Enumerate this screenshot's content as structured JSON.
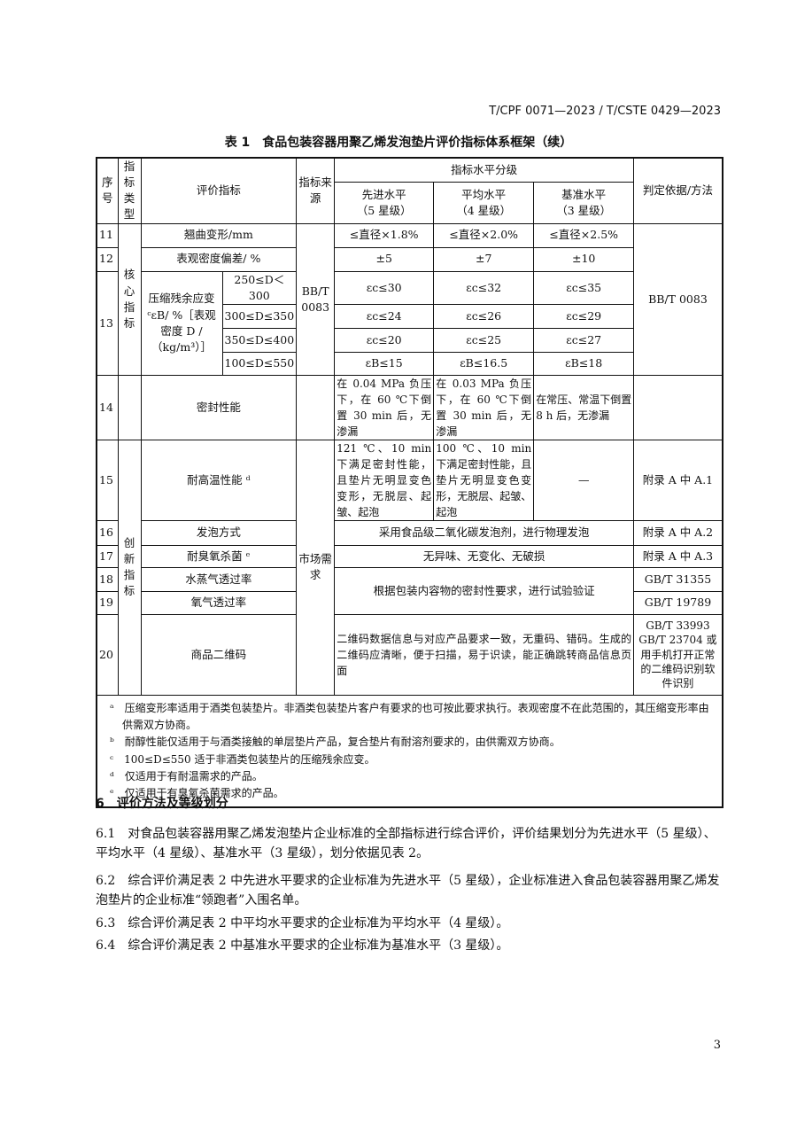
{
  "header": "T/CPF 0071—2023 / T/CSTE 0429—2023",
  "caption": "表 1　食品包装容器用聚乙烯发泡垫片评价指标体系框架（续）",
  "thead": {
    "no": "序号",
    "type": "指标类型",
    "indicator": "评价指标",
    "source": "指标来源",
    "levels": "指标水平分级",
    "l5": "先进水平",
    "l5s": "（5 星级）",
    "l4": "平均水平",
    "l4s": "（4 星级）",
    "l3": "基准水平",
    "l3s": "（3 星级）",
    "method": "判定依据/方法"
  },
  "types": {
    "core": "核心指标",
    "innov": "创新指标"
  },
  "sources": {
    "bbt": "BB/T 0083",
    "market": "市场需求"
  },
  "rows": {
    "r11": {
      "no": "11",
      "name": "翘曲变形/mm",
      "l5": "≤直径×1.8%",
      "l4": "≤直径×2.0%",
      "l3": "≤直径×2.5%"
    },
    "r12": {
      "no": "12",
      "name": "表观密度偏差/ %",
      "l5": "±5",
      "l4": "±7",
      "l3": "±10"
    },
    "r13": {
      "no": "13",
      "name": "压缩残余应变ᶜεB/ %［表观密度 D / （kg/m³）］",
      "sub": [
        {
          "range": "250≤D＜300",
          "l5": "εc≤30",
          "l4": "εc≤32",
          "l3": "εc≤35"
        },
        {
          "range": "300≤D≤350",
          "l5": "εc≤24",
          "l4": "εc≤26",
          "l3": "εc≤29"
        },
        {
          "range": "350≤D≤400",
          "l5": "εc≤20",
          "l4": "εc≤25",
          "l3": "εc≤27"
        },
        {
          "range": "100≤D≤550",
          "l5": "εB≤15",
          "l4": "εB≤16.5",
          "l3": "εB≤18"
        }
      ]
    },
    "r14": {
      "no": "14",
      "name": "密封性能",
      "l5": "在 0.04 MPa 负压下，在 60 ℃下倒置 30 min 后，无渗漏",
      "l4": "在 0.03 MPa 负压下，在 60 ℃下倒置 30 min 后，无渗漏",
      "l3": "在常压、常温下倒置 8 h 后，无渗漏"
    },
    "method_core": "BB/T 0083",
    "r15": {
      "no": "15",
      "name": "耐高温性能 ᵈ",
      "l5": "121 ℃、10 min 下满足密封性能，且垫片无明显变色变形，无脱层、起皱、起泡",
      "l4": "100 ℃、10 min 下满足密封性能，且垫片无明显变色变形，无脱层、起皱、起泡",
      "l3": "—",
      "method": "附录 A 中 A.1"
    },
    "r16": {
      "no": "16",
      "name": "发泡方式",
      "all": "采用食品级二氧化碳发泡剂，进行物理发泡",
      "method": "附录 A 中 A.2"
    },
    "r17": {
      "no": "17",
      "name": "耐臭氧杀菌 ᵉ",
      "all": "无异味、无变化、无破损",
      "method": "附录 A 中 A.3"
    },
    "r18": {
      "no": "18",
      "name": "水蒸气透过率",
      "method": "GB/T 31355"
    },
    "r19": {
      "no": "19",
      "name": "氧气透过率",
      "method": "GB/T 19789"
    },
    "r1819_all": "根据包装内容物的密封性要求，进行试验验证",
    "r20": {
      "no": "20",
      "name": "商品二维码",
      "all": "二维码数据信息与对应产品要求一致，无重码、错码。生成的二维码应清晰，便于扫描，易于识读，能正确跳转商品信息页面",
      "method": "GB/T 33993 GB/T 23704 或用手机打开正常的二维码识别软件识别"
    }
  },
  "footnotes": [
    "ᵃ　压缩变形率适用于酒类包装垫片。非酒类包装垫片客户有要求的也可按此要求执行。表观密度不在此范围的，其压缩变形率由供需双方协商。",
    "ᵇ　耐醇性能仅适用于与酒类接触的单层垫片产品，复合垫片有耐溶剂要求的，由供需双方协商。",
    "ᶜ　100≤D≤550 适于非酒类包装垫片的压缩残余应变。",
    "ᵈ　仅适用于有耐温需求的产品。",
    "ᵉ　仅适用于有臭氧杀菌需求的产品。"
  ],
  "section": {
    "title": "6　评价方法及等级划分",
    "p1": "6.1　对食品包装容器用聚乙烯发泡垫片企业标准的全部指标进行综合评价，评价结果划分为先进水平（5 星级）、平均水平（4 星级）、基准水平（3 星级），划分依据见表 2。",
    "p2": "6.2　综合评价满足表 2 中先进水平要求的企业标准为先进水平（5 星级），企业标准进入食品包装容器用聚乙烯发泡垫片的企业标准“领跑者”入围名单。",
    "p3": "6.3　综合评价满足表 2 中平均水平要求的企业标准为平均水平（4 星级）。",
    "p4": "6.4　综合评价满足表 2 中基准水平要求的企业标准为基准水平（3 星级）。"
  },
  "page_number": "3"
}
